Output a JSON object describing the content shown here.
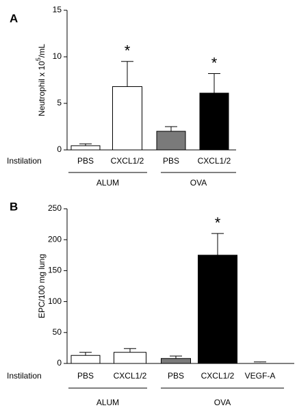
{
  "chart_data": [
    {
      "type": "bar",
      "panel_label": "A",
      "y_label": "Neutrophil x 10",
      "y_label_sup": "5",
      "y_label_suffix": "/mL",
      "row_label": "Instilation",
      "ylim": [
        0,
        15
      ],
      "yticks": [
        0,
        5,
        10,
        15
      ],
      "groups": [
        {
          "name": "ALUM",
          "categories": [
            "PBS",
            "CXCL1/2"
          ],
          "values": [
            0.45,
            6.8
          ],
          "errors": [
            0.2,
            2.7
          ],
          "colors": [
            "#ffffff",
            "#ffffff"
          ],
          "stars": [
            null,
            "*"
          ]
        },
        {
          "name": "OVA",
          "categories": [
            "PBS",
            "CXCL1/2"
          ],
          "values": [
            2.0,
            6.1
          ],
          "errors": [
            0.5,
            2.1
          ],
          "colors": [
            "#7a7a7a",
            "#000000"
          ],
          "stars": [
            null,
            "*"
          ]
        }
      ]
    },
    {
      "type": "bar",
      "panel_label": "B",
      "y_label": "EPC/100 mg lung",
      "row_label": "Instilation",
      "ylim": [
        0,
        250
      ],
      "yticks": [
        0,
        50,
        100,
        150,
        200,
        250
      ],
      "groups": [
        {
          "name": "ALUM",
          "categories": [
            "PBS",
            "CXCL1/2"
          ],
          "values": [
            13,
            18
          ],
          "errors": [
            5,
            6
          ],
          "colors": [
            "#ffffff",
            "#ffffff"
          ],
          "stars": [
            null,
            null
          ]
        },
        {
          "name": "OVA",
          "categories": [
            "PBS",
            "CXCL1/2",
            "VEGF-A"
          ],
          "values": [
            8,
            175,
            2
          ],
          "errors": [
            4,
            35,
            0.5
          ],
          "colors": [
            "#7a7a7a",
            "#000000",
            "#000000"
          ],
          "stars": [
            null,
            "*",
            null
          ]
        }
      ]
    }
  ]
}
